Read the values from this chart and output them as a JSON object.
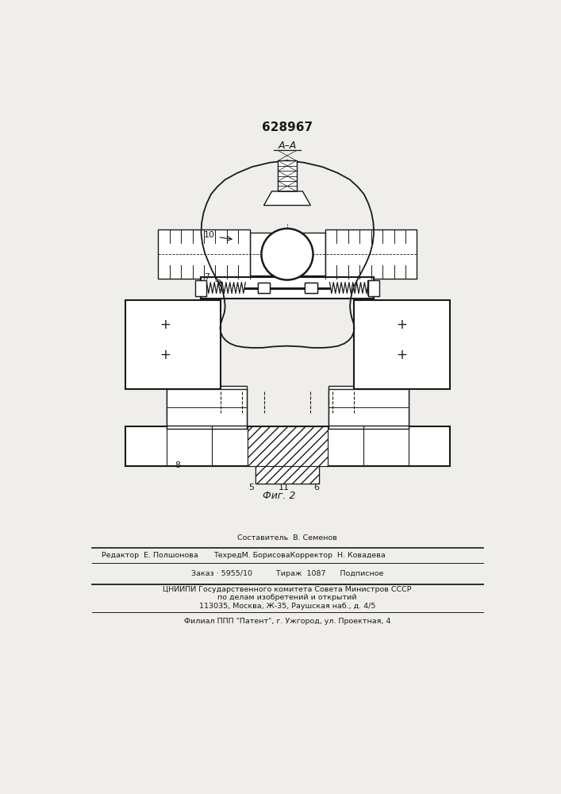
{
  "patent_number": "628967",
  "bg_color": "#f0eeea",
  "line_color": "#1a1a1a",
  "footer": {
    "line0": "Составитель  В. Семенов",
    "line1_left": "Редактор  Е. Полшонова",
    "line1_mid": "ТехредМ. БорисоваКорректор  Н. Ковадева",
    "line2": "Заказ · 5955/10          Тираж  1087      Подписное",
    "line3": "ЦНИИПИ Государственного комитета Совета Министров СССР",
    "line4": "по делам изобретений и открытий",
    "line5": "113035, Москва, Ж-35, Раушская наб., д. 4/5",
    "line6": "Филиал ППП \"Патент\", г. Ужгород, ул. Проектная, 4"
  }
}
